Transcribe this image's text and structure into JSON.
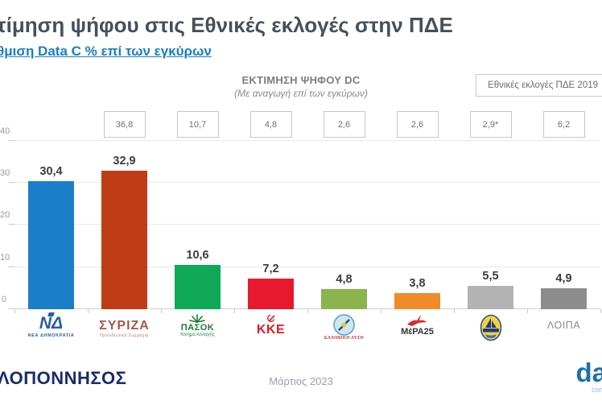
{
  "header": {
    "title": "τίμηση ψήφου στις Εθνικές εκλογές στην ΠΔΕ",
    "subtitle_link": "θμιση Data C % επί των εγκύρων"
  },
  "chart_data": {
    "type": "bar",
    "title": "ΕΚΤΙΜΗΣΗ ΨΗΦΟΥ DC",
    "subtitle": "(Με αναγωγή επί των εγκύρων)",
    "comparison_box_label": "Εθνικές εκλογές ΠΔΕ 2019",
    "ylim": [
      0,
      40
    ],
    "yticks": [
      "0",
      "10",
      "20",
      "30",
      "40"
    ],
    "grid": true,
    "legend_position": "top-right",
    "categories": [
      "ΝΕΑ ΔΗΜΟΚΡΑΤΙΑ",
      "ΣΥΡΙΖΑ - Προοδευτική Συμμαχία",
      "ΠΑΣΟΚ - Κίνημα Αλλαγής",
      "ΚΚΕ",
      "ΕΛΛΗΝΙΚΗ ΛΥΣΗ",
      "ΜέΡΑ25",
      "ΠΛΕΥΣΗ ΕΛΕΥΘΕΡΙΑΣ",
      "ΛΟΙΠΑ"
    ],
    "series": [
      {
        "name": "ΕΚΤΙΜΗΣΗ ΨΗΦΟΥ DC",
        "values": [
          30.4,
          32.9,
          10.6,
          7.2,
          4.8,
          3.8,
          5.5,
          4.9
        ],
        "value_labels": [
          "30,4",
          "32,9",
          "10,6",
          "7,2",
          "4,8",
          "3,8",
          "5,5",
          "4,9"
        ]
      },
      {
        "name": "Εθνικές εκλογές ΠΔΕ 2019",
        "values": [
          null,
          36.8,
          10.7,
          4.8,
          2.6,
          2.6,
          2.9,
          6.2
        ],
        "value_labels": [
          "",
          "36,8",
          "10,7",
          "4,8",
          "2,6",
          "2,6",
          "2,9*",
          "6,2"
        ]
      }
    ],
    "bar_colors": [
      "#1b7ec8",
      "#bf3c16",
      "#0fa958",
      "#e8192c",
      "#8cb44e",
      "#f08b2a",
      "#b3b3b3",
      "#8c8c8c"
    ]
  },
  "parties": [
    {
      "logo_text": "ΝΔ",
      "sub": "ΝΕΑ ΔΗΜΟΚΡΑΤΙΑ"
    },
    {
      "logo_text": "ΣΥΡΙΖΑ",
      "sub": "Προοδευτική Συμμαχία"
    },
    {
      "logo_text": "ΠΑΣΟΚ",
      "sub": "Κίνημα Αλλαγής"
    },
    {
      "logo_text": "KKE",
      "sub": ""
    },
    {
      "logo_text": "",
      "sub": "ΕΛΛΗΝΙΚΗ ΛΥΣΗ"
    },
    {
      "logo_text": "ΜέΡΑ25",
      "sub": ""
    },
    {
      "logo_text": "",
      "sub": ""
    },
    {
      "logo_text": "ΛΟΙΠΑ",
      "sub": ""
    }
  ],
  "footer": {
    "left_logo": "ΛΟΠΟΝΝΗΣΟΣ",
    "date": "Μάρτιος 2023",
    "right_logo": "da",
    "right_logo_sub": "cons"
  }
}
